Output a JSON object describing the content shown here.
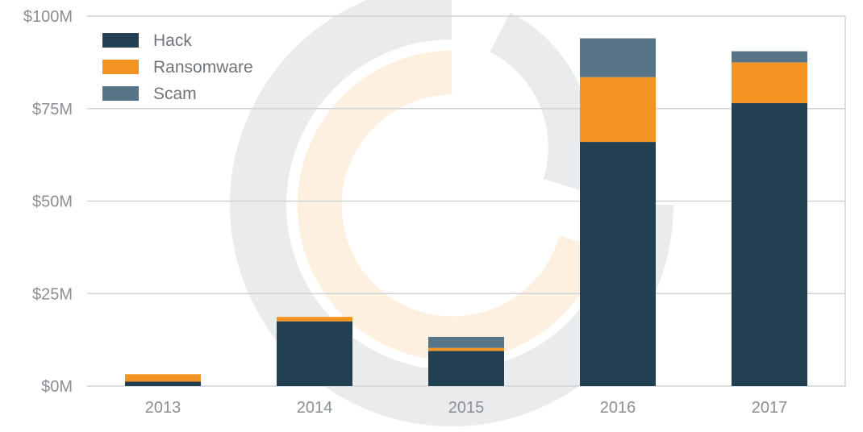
{
  "colors": {
    "hack": "#233f52",
    "ransomware": "#f39422",
    "scam": "#587588",
    "grid": "#cfd3d6",
    "watermark_gray": "#e9ebed",
    "watermark_orange": "#fdf0e0"
  },
  "chart_data": {
    "type": "bar",
    "stacked": true,
    "categories": [
      "2013",
      "2014",
      "2015",
      "2016",
      "2017"
    ],
    "series": [
      {
        "name": "Hack",
        "color": "#233f52",
        "values": [
          1.2,
          17.5,
          9.5,
          66,
          76.5
        ]
      },
      {
        "name": "Ransomware",
        "color": "#f39422",
        "values": [
          2,
          1.2,
          0.8,
          17.5,
          11
        ]
      },
      {
        "name": "Scam",
        "color": "#587588",
        "values": [
          0,
          0,
          3,
          10.5,
          3
        ]
      }
    ],
    "ylim": [
      0,
      100
    ],
    "yticks": [
      0,
      25,
      50,
      75,
      100
    ],
    "ytick_labels": [
      "$0M",
      "$25M",
      "$50M",
      "$75M",
      "$100M"
    ],
    "title": "",
    "xlabel": "",
    "ylabel": "",
    "grid": true,
    "legend_position": "top-left"
  }
}
